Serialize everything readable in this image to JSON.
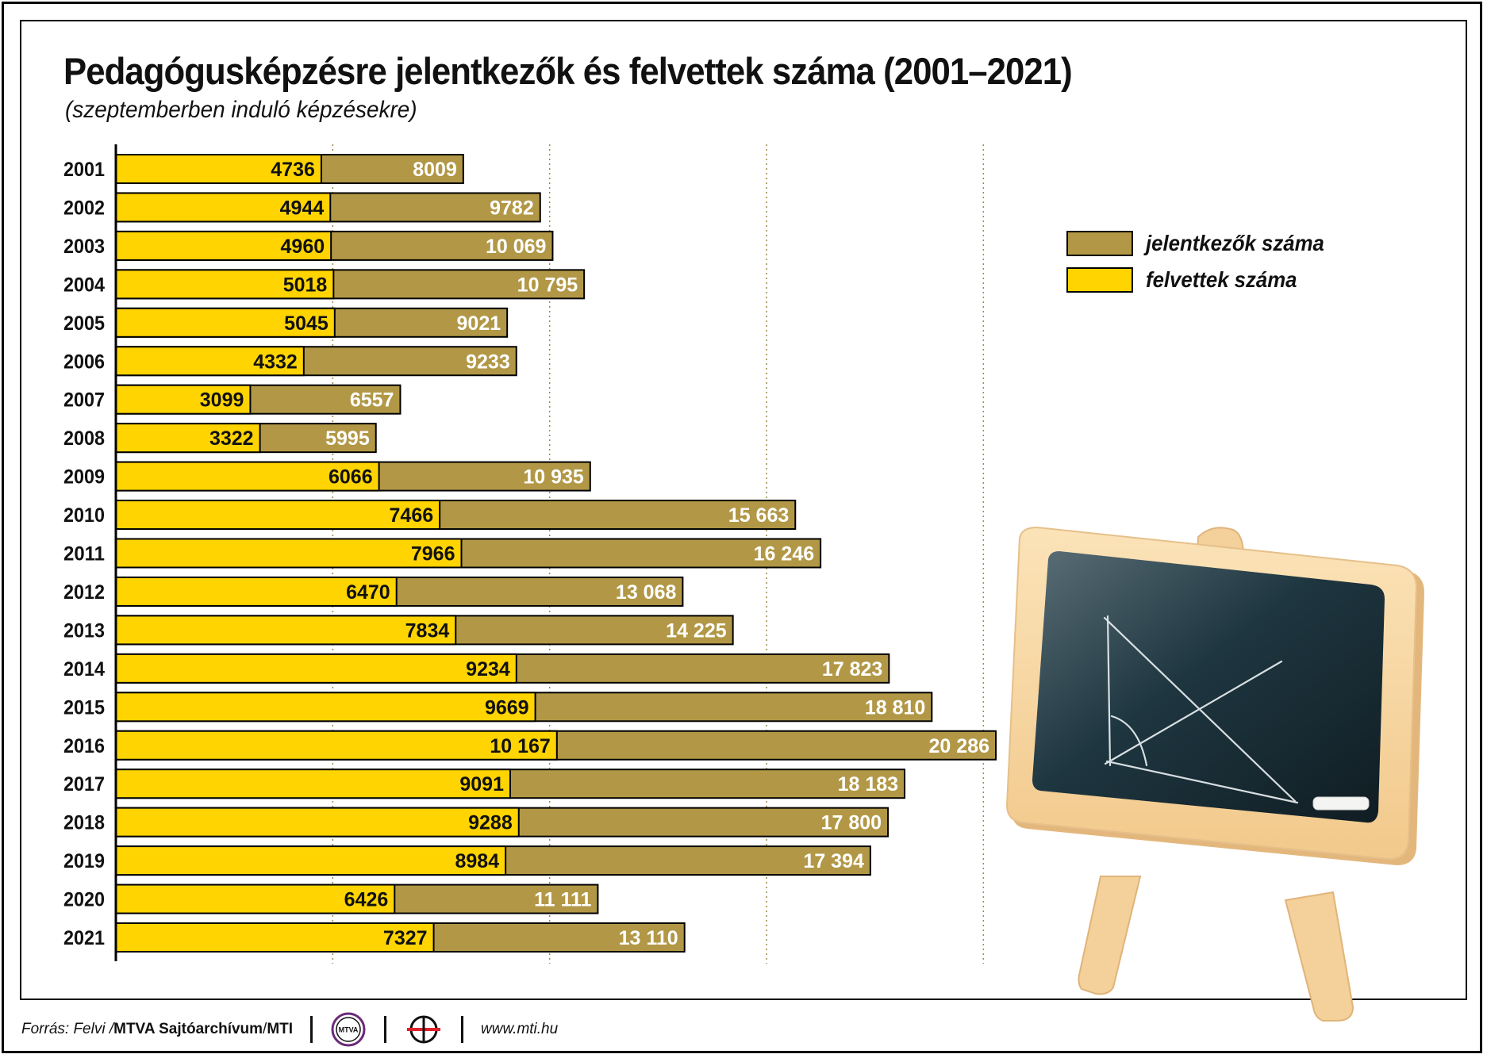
{
  "title": "Pedagógusképzésre jelentkezők és felvettek száma (2001–2021)",
  "subtitle": "(szeptemberben induló képzésekre)",
  "legend": {
    "applicants_label": "jelentkezők száma",
    "admitted_label": "felvettek száma"
  },
  "colors": {
    "applicants": "#b29846",
    "admitted": "#ffd400",
    "axis": "#000000"
  },
  "chart_data": {
    "type": "bar",
    "orientation": "horizontal",
    "stacked": false,
    "categories": [
      "2001",
      "2002",
      "2003",
      "2004",
      "2005",
      "2006",
      "2007",
      "2008",
      "2009",
      "2010",
      "2011",
      "2012",
      "2013",
      "2014",
      "2015",
      "2016",
      "2017",
      "2018",
      "2019",
      "2020",
      "2021"
    ],
    "series": [
      {
        "name": "jelentkezők száma",
        "values": [
          8009,
          9782,
          10069,
          10795,
          9021,
          9233,
          6557,
          5995,
          10935,
          15663,
          16246,
          13068,
          14225,
          17823,
          18810,
          20286,
          18183,
          17800,
          17394,
          11111,
          13110
        ],
        "labels": [
          "8009",
          "9782",
          "10 069",
          "10 795",
          "9021",
          "9233",
          "6557",
          "5995",
          "10 935",
          "15 663",
          "16 246",
          "13 068",
          "14 225",
          "17 823",
          "18 810",
          "20 286",
          "18 183",
          "17 800",
          "17 394",
          "11 111",
          "13 110"
        ]
      },
      {
        "name": "felvettek száma",
        "values": [
          4736,
          4944,
          4960,
          5018,
          5045,
          4332,
          3099,
          3322,
          6066,
          7466,
          7966,
          6470,
          7834,
          9234,
          9669,
          10167,
          9091,
          9288,
          8984,
          6426,
          7327
        ],
        "labels": [
          "4736",
          "4944",
          "4960",
          "5018",
          "5045",
          "4332",
          "3099",
          "3322",
          "6066",
          "7466",
          "7966",
          "6470",
          "7834",
          "9234",
          "9669",
          "10 167",
          "9091",
          "9288",
          "8984",
          "6426",
          "7327"
        ]
      }
    ],
    "xlim": [
      0,
      20286
    ],
    "grid": "vertical dotted lines",
    "legend_position": "right"
  },
  "footer": {
    "source_prefix": "Forrás: Felvi / ",
    "source_org": "MTVA Sajtóarchívum",
    "source_sep": " / ",
    "source_agency": "MTI",
    "logo1_text": "MTVA",
    "website": "www.mti.hu"
  }
}
